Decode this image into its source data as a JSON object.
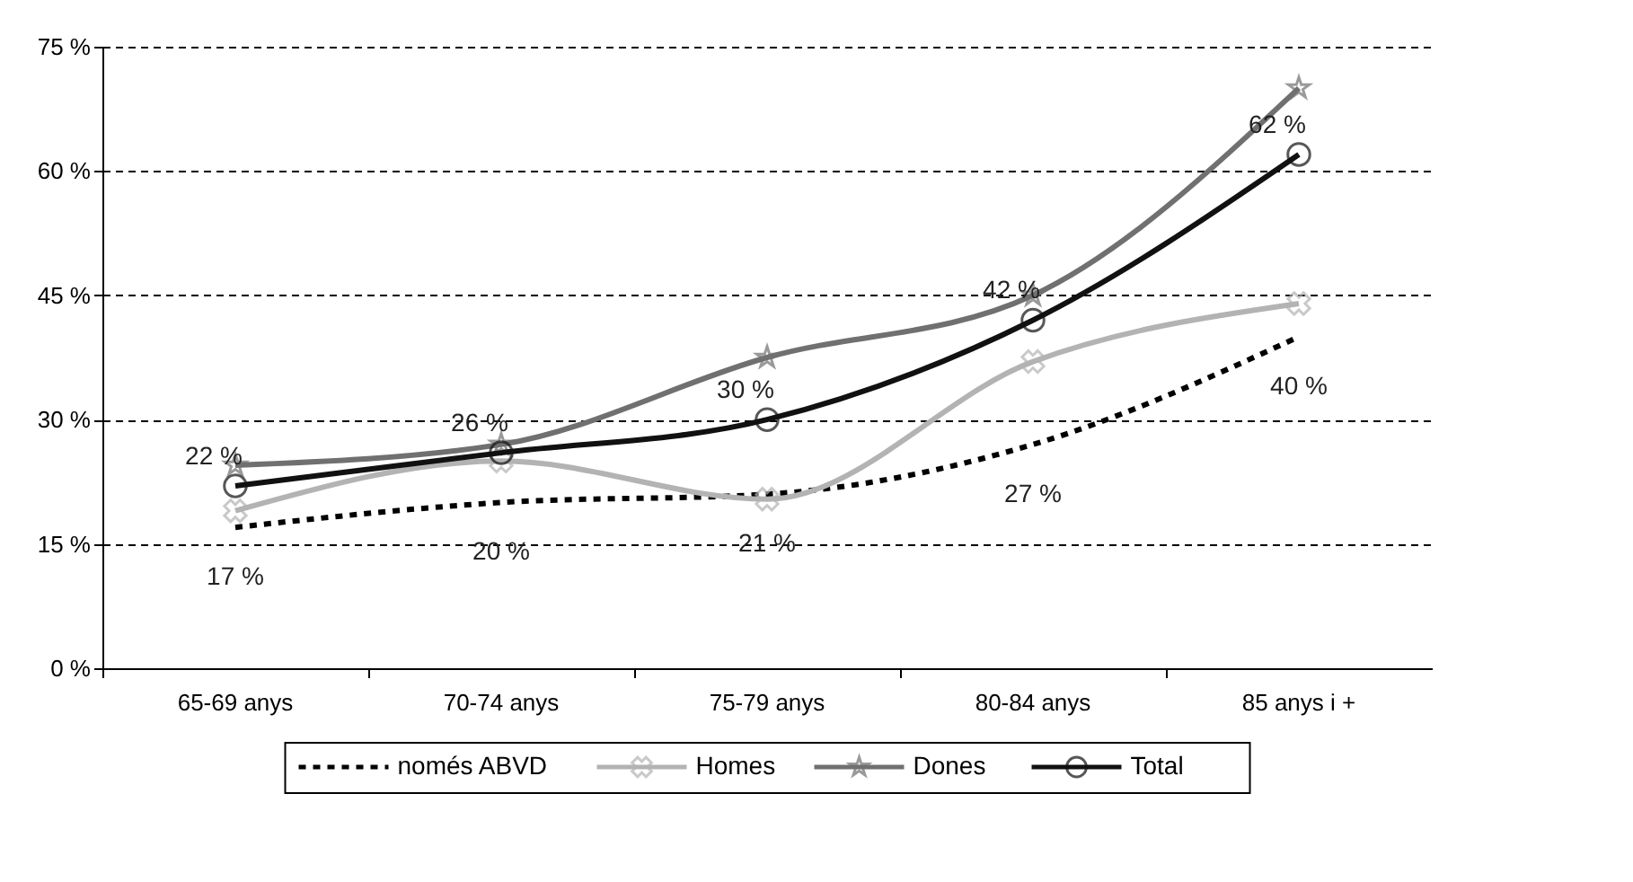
{
  "chart_data": {
    "type": "line",
    "categories": [
      "65-69 anys",
      "70-74 anys",
      "75-79 anys",
      "80-84 anys",
      "85 anys i +"
    ],
    "series": [
      {
        "name": "només ABVD",
        "color": "#000000",
        "line_style": "dashed",
        "marker": "none",
        "values": [
          17,
          20,
          21,
          27,
          40
        ],
        "value_labels": [
          "17 %",
          "20 %",
          "21 %",
          "27 %",
          "40 %"
        ]
      },
      {
        "name": "Homes",
        "color": "#b3b3b3",
        "line_style": "solid",
        "marker": "cross",
        "values": [
          19,
          25,
          20.4,
          37,
          44
        ]
      },
      {
        "name": "Dones",
        "color": "#707070",
        "line_style": "solid",
        "marker": "star",
        "values": [
          24.5,
          27,
          37.5,
          45,
          70
        ]
      },
      {
        "name": "Total",
        "color": "#111111",
        "line_style": "solid",
        "marker": "circle",
        "values": [
          22,
          26,
          30,
          42,
          62
        ],
        "value_labels": [
          "22 %",
          "26 %",
          "30 %",
          "42 %",
          "62 %"
        ]
      }
    ],
    "ylim": [
      0,
      75
    ],
    "yticks": [
      {
        "value": 0,
        "label": "0 %"
      },
      {
        "value": 15,
        "label": "15 %"
      },
      {
        "value": 30,
        "label": "30 %"
      },
      {
        "value": 45,
        "label": "45 %"
      },
      {
        "value": 60,
        "label": "60 %"
      },
      {
        "value": 75,
        "label": "75 %"
      }
    ],
    "grid": "y",
    "legend": "bottom"
  }
}
